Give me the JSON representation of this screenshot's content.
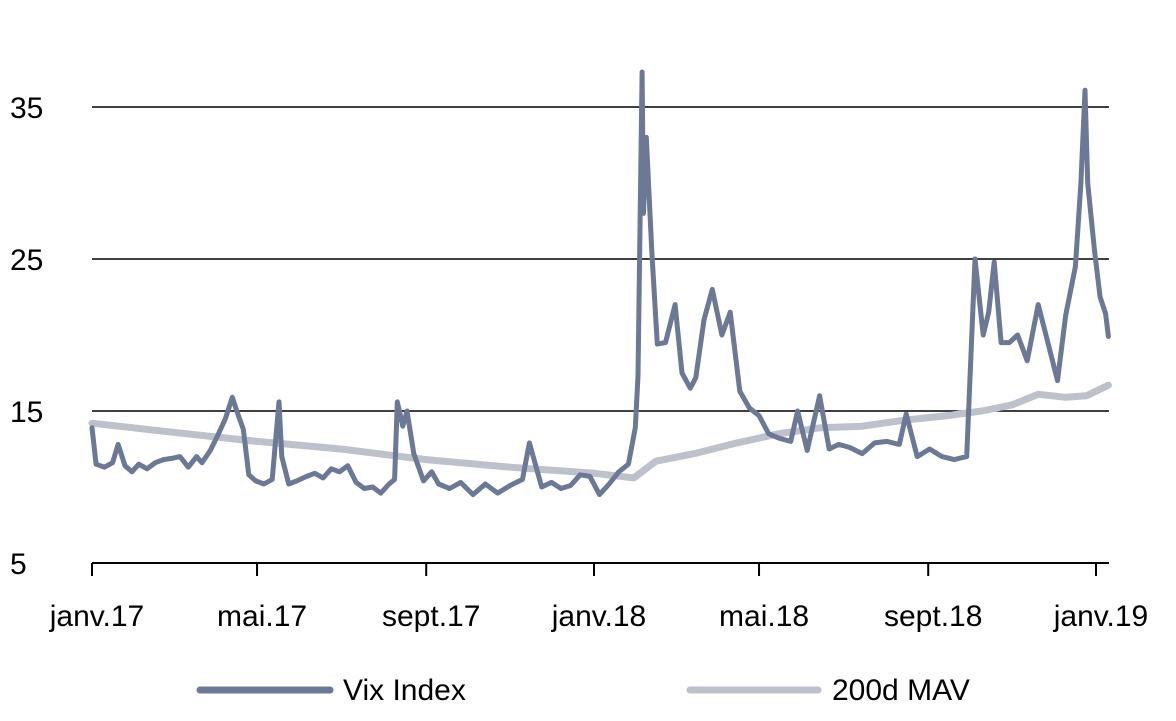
{
  "chart_data": {
    "type": "line",
    "title": "",
    "xlabel": "",
    "ylabel": "",
    "ylim": [
      5,
      37.5
    ],
    "y_ticks": [
      5,
      15,
      25,
      35
    ],
    "x_tick_labels": [
      "janv.17",
      "mai.17",
      "sept.17",
      "janv.18",
      "mai.18",
      "sept.18",
      "janv.19"
    ],
    "x_range": [
      "2017-01-01",
      "2019-01-10"
    ],
    "grid": "horizontal",
    "legend_position": "bottom",
    "series": [
      {
        "name": "Vix Index",
        "color": "#6b7896",
        "x": [
          "2017-01-01",
          "2017-01-04",
          "2017-01-10",
          "2017-01-16",
          "2017-01-20",
          "2017-01-25",
          "2017-01-30",
          "2017-02-04",
          "2017-02-10",
          "2017-02-16",
          "2017-02-22",
          "2017-03-01",
          "2017-03-06",
          "2017-03-12",
          "2017-03-18",
          "2017-03-22",
          "2017-03-28",
          "2017-04-03",
          "2017-04-08",
          "2017-04-13",
          "2017-04-17",
          "2017-04-21",
          "2017-04-25",
          "2017-04-30",
          "2017-05-06",
          "2017-05-12",
          "2017-05-17",
          "2017-05-19",
          "2017-05-24",
          "2017-05-30",
          "2017-06-06",
          "2017-06-12",
          "2017-06-18",
          "2017-06-24",
          "2017-06-30",
          "2017-07-06",
          "2017-07-12",
          "2017-07-18",
          "2017-07-24",
          "2017-07-30",
          "2017-08-05",
          "2017-08-09",
          "2017-08-11",
          "2017-08-15",
          "2017-08-18",
          "2017-08-23",
          "2017-08-30",
          "2017-09-05",
          "2017-09-10",
          "2017-09-18",
          "2017-09-26",
          "2017-10-05",
          "2017-10-14",
          "2017-10-23",
          "2017-11-01",
          "2017-11-10",
          "2017-11-15",
          "2017-11-24",
          "2017-12-01",
          "2017-12-08",
          "2017-12-15",
          "2017-12-22",
          "2017-12-29",
          "2018-01-05",
          "2018-01-12",
          "2018-01-19",
          "2018-01-26",
          "2018-01-31",
          "2018-02-02",
          "2018-02-05",
          "2018-02-06",
          "2018-02-08",
          "2018-02-12",
          "2018-02-16",
          "2018-02-22",
          "2018-03-01",
          "2018-03-06",
          "2018-03-12",
          "2018-03-16",
          "2018-03-22",
          "2018-03-28",
          "2018-04-04",
          "2018-04-10",
          "2018-04-17",
          "2018-04-24",
          "2018-05-01",
          "2018-05-08",
          "2018-05-16",
          "2018-05-24",
          "2018-05-29",
          "2018-06-05",
          "2018-06-14",
          "2018-06-21",
          "2018-06-28",
          "2018-07-06",
          "2018-07-15",
          "2018-07-24",
          "2018-08-02",
          "2018-08-11",
          "2018-08-16",
          "2018-08-24",
          "2018-09-02",
          "2018-09-11",
          "2018-09-20",
          "2018-09-29",
          "2018-10-05",
          "2018-10-11",
          "2018-10-15",
          "2018-10-19",
          "2018-10-24",
          "2018-10-30",
          "2018-11-05",
          "2018-11-12",
          "2018-11-20",
          "2018-11-27",
          "2018-12-04",
          "2018-12-10",
          "2018-12-17",
          "2018-12-21",
          "2018-12-24",
          "2018-12-26",
          "2018-12-31",
          "2019-01-04",
          "2019-01-08",
          "2019-01-10"
        ],
        "values": [
          13.9,
          11.5,
          11.3,
          11.6,
          12.8,
          11.4,
          11.0,
          11.5,
          11.2,
          11.6,
          11.8,
          11.9,
          12.0,
          11.3,
          12.0,
          11.6,
          12.4,
          13.5,
          14.5,
          15.9,
          14.8,
          13.8,
          10.8,
          10.4,
          10.2,
          10.5,
          15.6,
          12.0,
          10.2,
          10.4,
          10.7,
          10.9,
          10.6,
          11.2,
          11.0,
          11.4,
          10.3,
          9.9,
          10.0,
          9.6,
          10.2,
          10.5,
          15.6,
          14.0,
          15.0,
          12.2,
          10.4,
          11.0,
          10.2,
          9.9,
          10.3,
          9.5,
          10.2,
          9.6,
          10.1,
          10.5,
          12.9,
          10.0,
          10.3,
          9.9,
          10.1,
          10.8,
          10.7,
          9.5,
          10.2,
          11.0,
          11.5,
          13.9,
          17.3,
          37.3,
          28.0,
          33.0,
          25.5,
          19.4,
          19.5,
          22.0,
          17.5,
          16.5,
          17.2,
          21.0,
          23.0,
          20.0,
          21.5,
          16.3,
          15.2,
          14.7,
          13.5,
          13.2,
          13.0,
          15.0,
          12.4,
          16.0,
          12.5,
          12.8,
          12.6,
          12.2,
          12.9,
          13.0,
          12.8,
          14.8,
          12.0,
          12.5,
          12.0,
          11.8,
          12.0,
          25.0,
          20.0,
          21.5,
          24.8,
          19.5,
          19.5,
          20.0,
          18.3,
          22.0,
          19.5,
          17.0,
          21.3,
          24.5,
          30.0,
          36.1,
          30.0,
          25.5,
          22.5,
          21.4,
          19.9
        ]
      },
      {
        "name": "200d MAV",
        "color": "#bcc1cc",
        "x": [
          "2017-01-01",
          "2017-03-01",
          "2017-05-01",
          "2017-07-01",
          "2017-09-01",
          "2017-11-01",
          "2018-01-01",
          "2018-01-30",
          "2018-02-15",
          "2018-03-15",
          "2018-04-15",
          "2018-05-15",
          "2018-06-15",
          "2018-07-15",
          "2018-08-15",
          "2018-09-15",
          "2018-10-10",
          "2018-11-01",
          "2018-11-20",
          "2018-12-10",
          "2018-12-25",
          "2019-01-10"
        ],
        "values": [
          14.2,
          13.6,
          13.0,
          12.5,
          11.8,
          11.3,
          10.9,
          10.6,
          11.7,
          12.2,
          12.9,
          13.5,
          13.9,
          14.0,
          14.4,
          14.7,
          15.0,
          15.4,
          16.1,
          15.9,
          16.0,
          16.7
        ]
      }
    ]
  }
}
